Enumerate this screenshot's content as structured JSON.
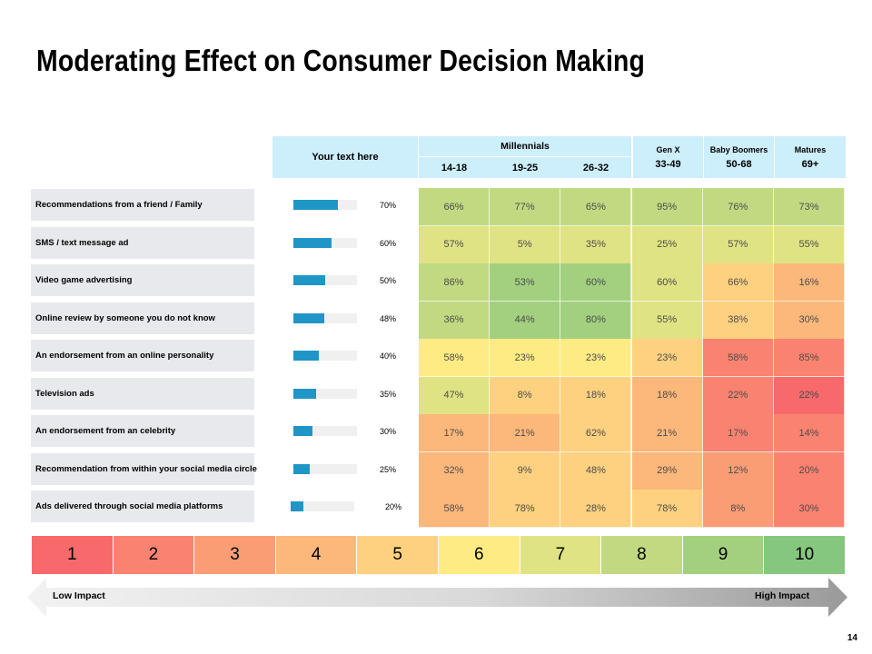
{
  "title": "Moderating Effect on Consumer Decision Making",
  "header": {
    "your_text": "Your text here",
    "millennials": "Millennials",
    "millennial_ages": [
      "14-18",
      "19-25",
      "26-32"
    ],
    "genx": {
      "name": "Gen X",
      "ages": "33-49"
    },
    "boomers": {
      "name": "Baby Boomers",
      "ages": "50-68"
    },
    "matures": {
      "name": "Matures",
      "ages": "69+"
    }
  },
  "chart_data": {
    "type": "heatmap",
    "title": "Moderating Effect on Consumer Decision Making",
    "columns": [
      "14-18",
      "19-25",
      "26-32",
      "33-49",
      "50-68",
      "69+"
    ],
    "rows": [
      {
        "label": "Recommendations from a friend / Family",
        "overall": 70,
        "overall_label": "70%",
        "cells": [
          "66%",
          "77%",
          "65%",
          "95%",
          "76%",
          "73%"
        ],
        "scores": [
          8,
          8,
          8,
          8,
          8,
          8
        ]
      },
      {
        "label": "SMS / text message ad",
        "overall": 60,
        "overall_label": "60%",
        "cells": [
          "57%",
          "5%",
          "35%",
          "25%",
          "57%",
          "55%"
        ],
        "scores": [
          7,
          7,
          7,
          7,
          7,
          7
        ]
      },
      {
        "label": "Video game advertising",
        "overall": 50,
        "overall_label": "50%",
        "cells": [
          "86%",
          "53%",
          "60%",
          "60%",
          "66%",
          "16%"
        ],
        "scores": [
          8,
          9,
          9,
          7,
          5,
          4
        ]
      },
      {
        "label": "Online review by someone you do not know",
        "overall": 48,
        "overall_label": "48%",
        "cells": [
          "36%",
          "44%",
          "80%",
          "55%",
          "38%",
          "30%"
        ],
        "scores": [
          8,
          9,
          9,
          7,
          5,
          4
        ]
      },
      {
        "label": "An endorsement from an online personality",
        "overall": 40,
        "overall_label": "40%",
        "cells": [
          "58%",
          "23%",
          "23%",
          "23%",
          "58%",
          "85%"
        ],
        "scores": [
          6,
          6,
          6,
          5,
          2,
          2
        ]
      },
      {
        "label": "Television ads",
        "overall": 35,
        "overall_label": "35%",
        "cells": [
          "47%",
          "8%",
          "18%",
          "18%",
          "22%",
          "22%"
        ],
        "scores": [
          7,
          5,
          5,
          4,
          2,
          1
        ]
      },
      {
        "label": "An endorsement from an celebrity",
        "overall": 30,
        "overall_label": "30%",
        "cells": [
          "17%",
          "21%",
          "62%",
          "21%",
          "17%",
          "14%"
        ],
        "scores": [
          4,
          4,
          5,
          4,
          2,
          2
        ]
      },
      {
        "label": "Recommendation from within your social media circle",
        "overall": 25,
        "overall_label": "25%",
        "cells": [
          "32%",
          "9%",
          "48%",
          "29%",
          "12%",
          "20%"
        ],
        "scores": [
          4,
          5,
          5,
          4,
          3,
          2
        ]
      },
      {
        "label": "Ads delivered through social media platforms",
        "overall": 20,
        "overall_label": "20%",
        "cells": [
          "58%",
          "78%",
          "28%",
          "78%",
          "8%",
          "30%"
        ],
        "scores": [
          4,
          5,
          5,
          5,
          3,
          2
        ]
      }
    ],
    "scale": {
      "values": [
        "1",
        "2",
        "3",
        "4",
        "5",
        "6",
        "7",
        "8",
        "9",
        "10"
      ],
      "colors": [
        "#f8696b",
        "#f98370",
        "#fa9d75",
        "#fcb77a",
        "#fdd17f",
        "#ffeb84",
        "#e0e383",
        "#c1da81",
        "#a2d07f",
        "#85c77e"
      ]
    }
  },
  "legend": {
    "low": "Low Impact",
    "high": "High Impact"
  },
  "page_number": "14",
  "colors": {
    "bar": "#1f96c6",
    "header_bg": "#cdeefb",
    "label_bg": "#e7e9ed"
  }
}
